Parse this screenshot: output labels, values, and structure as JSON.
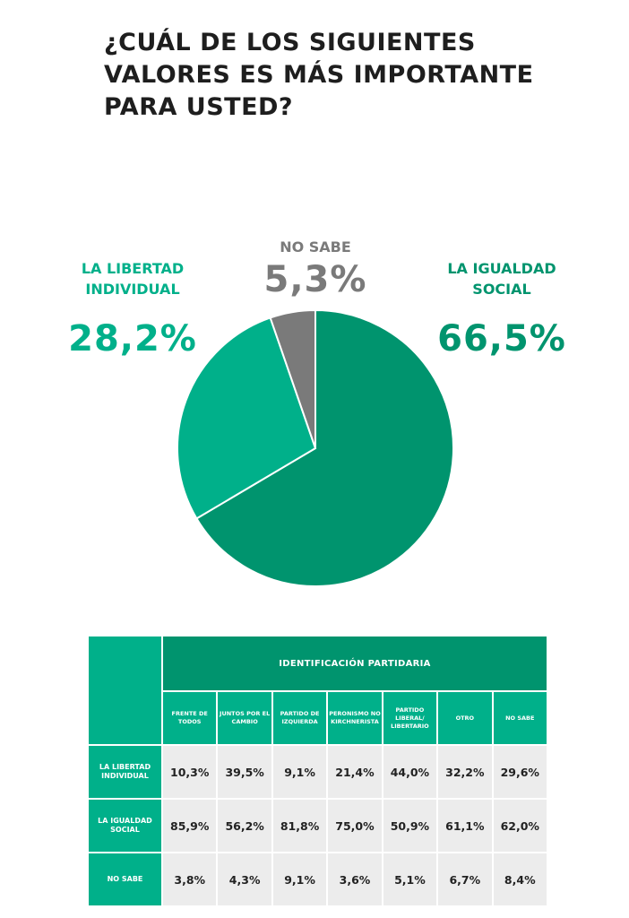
{
  "title": "¿CUÁL DE LOS SIGUIENTES VALORES ES MÁS IMPORTANTE PARA USTED?",
  "colors": {
    "libertad": "#00b08a",
    "igualdad": "#00946e",
    "no_sabe": "#7a7a7a",
    "title": "#1e1e1e"
  },
  "pie_labels": {
    "libertad": {
      "name": "LA LIBERTAD INDIVIDUAL",
      "pct": "28,2%"
    },
    "no_sabe": {
      "name": "NO SABE",
      "pct": "5,3%"
    },
    "igualdad": {
      "name": "LA IGUALDAD SOCIAL",
      "pct": "66,5%"
    }
  },
  "chart_data": {
    "type": "pie",
    "title": "¿CUÁL DE LOS SIGUIENTES VALORES ES MÁS IMPORTANTE PARA USTED?",
    "slices": [
      {
        "label": "LA IGUALDAD SOCIAL",
        "value": 66.5,
        "color": "#00946e"
      },
      {
        "label": "LA LIBERTAD INDIVIDUAL",
        "value": 28.2,
        "color": "#00b08a"
      },
      {
        "label": "NO SABE",
        "value": 5.3,
        "color": "#7a7a7a"
      }
    ]
  },
  "table": {
    "group_header": "IDENTIFICACIÓN PARTIDARIA",
    "columns": [
      "FRENTE DE TODOS",
      "JUNTOS POR EL CAMBIO",
      "PARTIDO DE IZQUIERDA",
      "PERONISMO NO KIRCHNERISTA",
      "PARTIDO LIBERAL/ LIBERTARIO",
      "OTRO",
      "NO SABE"
    ],
    "rows": [
      {
        "label": "LA LIBERTAD INDIVIDUAL",
        "values": [
          "10,3%",
          "39,5%",
          "9,1%",
          "21,4%",
          "44,0%",
          "32,2%",
          "29,6%"
        ]
      },
      {
        "label": "LA IGUALDAD SOCIAL",
        "values": [
          "85,9%",
          "56,2%",
          "81,8%",
          "75,0%",
          "50,9%",
          "61,1%",
          "62,0%"
        ]
      },
      {
        "label": "NO SABE",
        "values": [
          "3,8%",
          "4,3%",
          "9,1%",
          "3,6%",
          "5,1%",
          "6,7%",
          "8,4%"
        ]
      }
    ]
  }
}
